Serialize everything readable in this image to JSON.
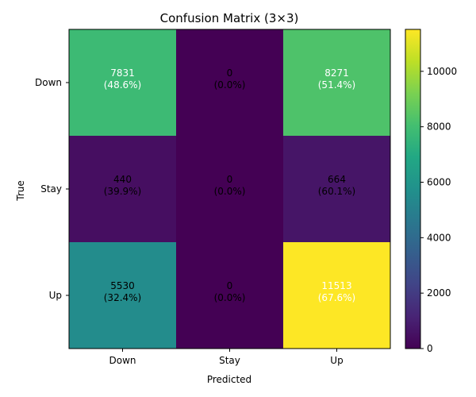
{
  "chart_data": {
    "type": "heatmap",
    "title": "Confusion Matrix (3×3)",
    "xlabel": "Predicted",
    "ylabel": "True",
    "x_categories": [
      "Down",
      "Stay",
      "Up"
    ],
    "y_categories": [
      "Down",
      "Stay",
      "Up"
    ],
    "values": [
      [
        7831,
        0,
        8271
      ],
      [
        440,
        0,
        664
      ],
      [
        5530,
        0,
        11513
      ]
    ],
    "cell_labels": [
      [
        "7831\n(48.6%)",
        "0\n(0.0%)",
        "8271\n(51.4%)"
      ],
      [
        "440\n(39.9%)",
        "0\n(0.0%)",
        "664\n(60.1%)"
      ],
      [
        "5530\n(32.4%)",
        "0\n(0.0%)",
        "11513\n(67.6%)"
      ]
    ],
    "colorscale": "viridis",
    "vmin": 0,
    "vmax": 11513,
    "colorbar_ticks": [
      0,
      2000,
      4000,
      6000,
      8000,
      10000
    ],
    "grid": false
  }
}
